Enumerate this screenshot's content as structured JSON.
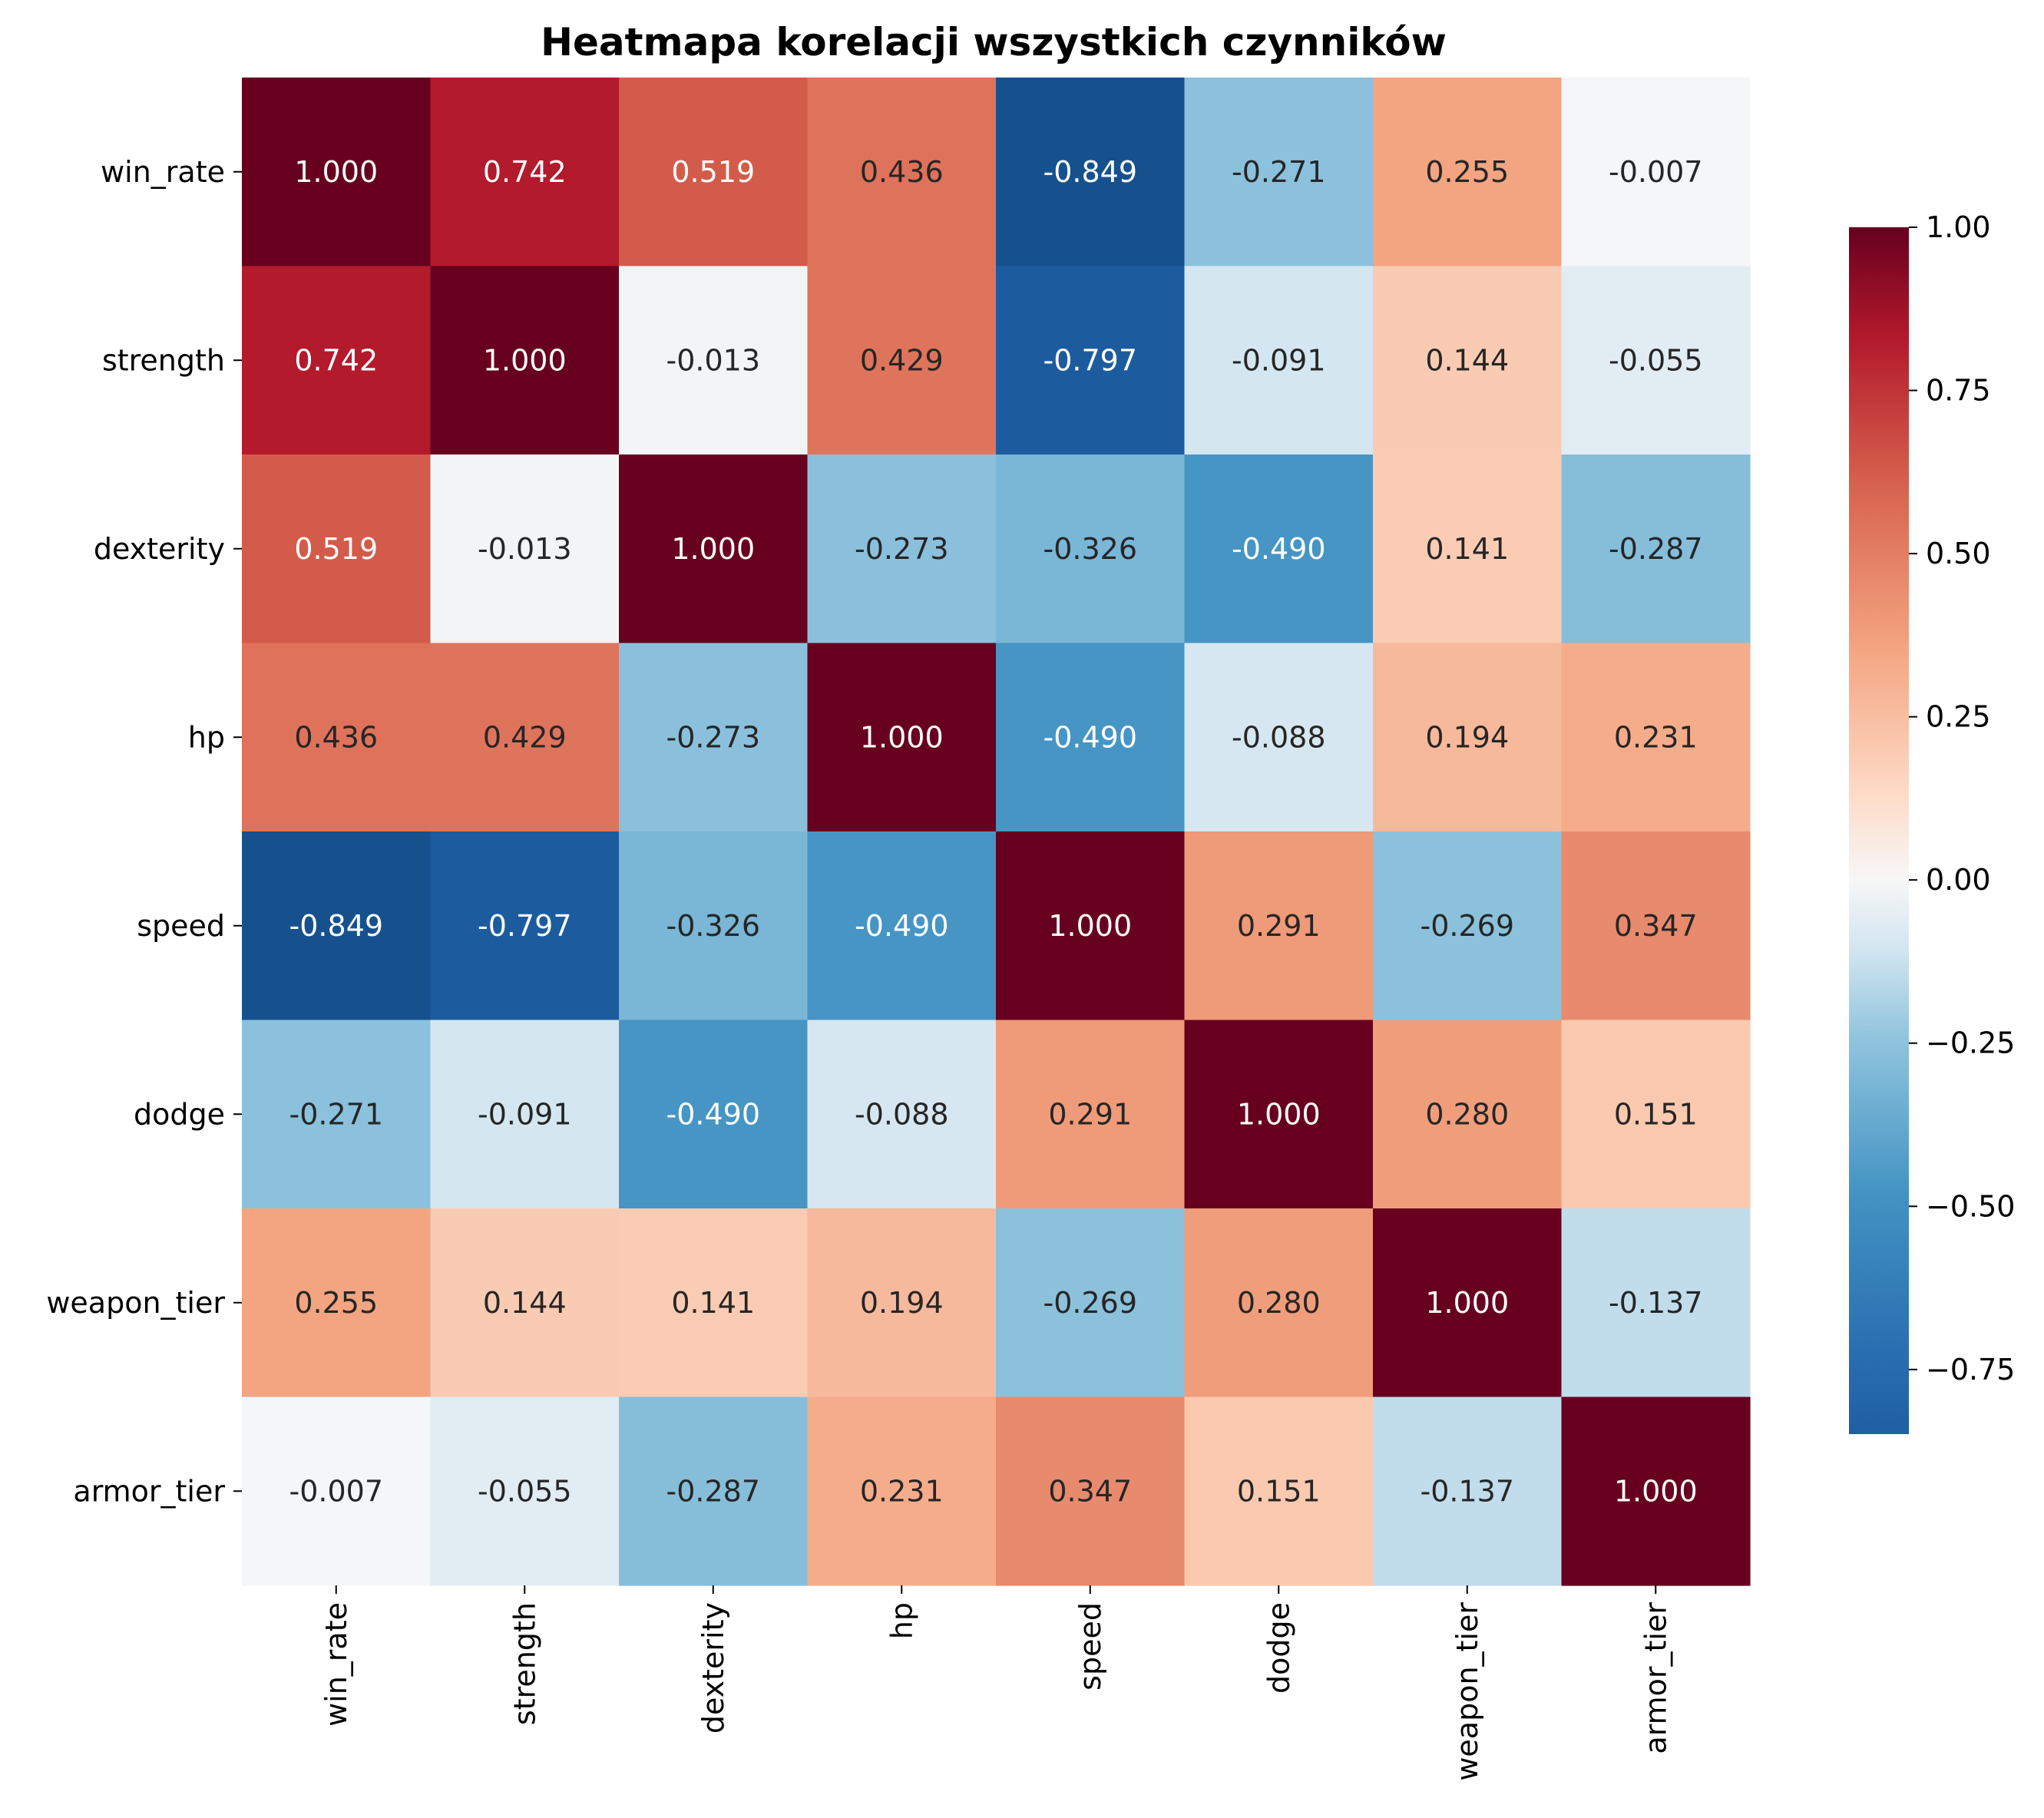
{
  "chart_data": {
    "type": "heatmap",
    "title": "Heatmapa korelacji wszystkich czynników",
    "xlabel": "",
    "ylabel": "",
    "row_labels": [
      "win_rate",
      "strength",
      "dexterity",
      "hp",
      "speed",
      "dodge",
      "weapon_tier",
      "armor_tier"
    ],
    "col_labels": [
      "win_rate",
      "strength",
      "dexterity",
      "hp",
      "speed",
      "dodge",
      "weapon_tier",
      "armor_tier"
    ],
    "values": [
      [
        1.0,
        0.742,
        0.519,
        0.436,
        -0.849,
        -0.271,
        0.255,
        -0.007
      ],
      [
        0.742,
        1.0,
        -0.013,
        0.429,
        -0.797,
        -0.091,
        0.144,
        -0.055
      ],
      [
        0.519,
        -0.013,
        1.0,
        -0.273,
        -0.326,
        -0.49,
        0.141,
        -0.287
      ],
      [
        0.436,
        0.429,
        -0.273,
        1.0,
        -0.49,
        -0.088,
        0.194,
        0.231
      ],
      [
        -0.849,
        -0.797,
        -0.326,
        -0.49,
        1.0,
        0.291,
        -0.269,
        0.347
      ],
      [
        -0.271,
        -0.091,
        -0.49,
        -0.088,
        0.291,
        1.0,
        0.28,
        0.151
      ],
      [
        0.255,
        0.144,
        0.141,
        0.194,
        -0.269,
        0.28,
        1.0,
        -0.137
      ],
      [
        -0.007,
        -0.055,
        -0.287,
        0.231,
        0.347,
        0.151,
        -0.137,
        1.0
      ]
    ],
    "value_format": "3 decimals",
    "colormap": "RdBu_r",
    "vmin": -0.849,
    "vmax": 1.0,
    "center": 0,
    "colorbar_ticks": [
      "−0.75",
      "−0.50",
      "−0.25",
      "0.00",
      "0.25",
      "0.50",
      "0.75",
      "1.00"
    ],
    "colorbar_tick_values": [
      -0.75,
      -0.5,
      -0.25,
      0.0,
      0.25,
      0.5,
      0.75,
      1.0
    ],
    "colorbar_position": "right",
    "grid": false
  }
}
